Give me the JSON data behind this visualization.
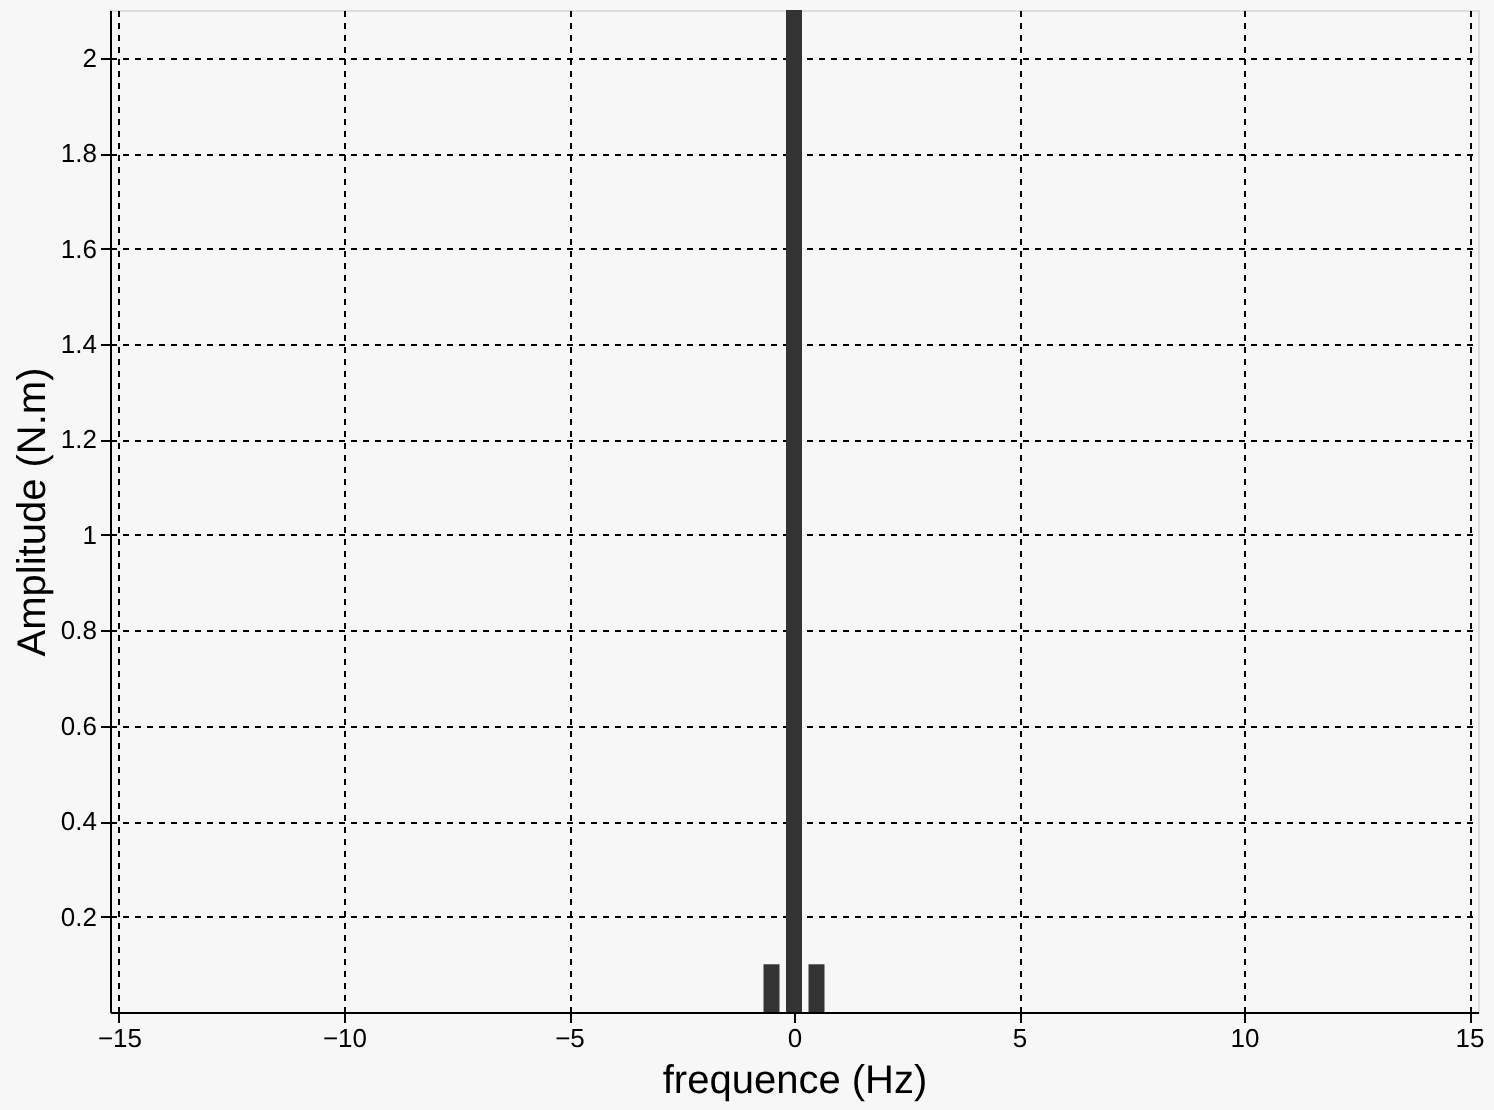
{
  "chart_data": {
    "type": "bar",
    "xlabel": "frequence (Hz)",
    "ylabel": "Amplitude (N.m)",
    "x": [
      -0.5,
      0,
      0.5
    ],
    "values": [
      0.1,
      2.1,
      0.1
    ],
    "color": "#333333",
    "xlim": [
      -15.2,
      15.2
    ],
    "xticks": [
      -15,
      -10,
      -5,
      0,
      5,
      10,
      15
    ],
    "ylim": [
      0,
      2.1
    ],
    "yticks": [
      0.2,
      0.4,
      0.6,
      0.8,
      1,
      1.2,
      1.4,
      1.6,
      1.8,
      2
    ],
    "grid": true
  }
}
